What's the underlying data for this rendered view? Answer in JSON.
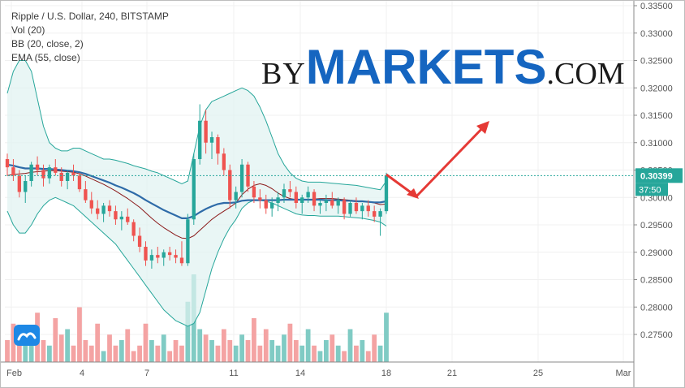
{
  "legend": {
    "symbol": "Ripple / U.S. Dollar, 240, BITSTAMP",
    "vol": "Vol (20)",
    "bb": "BB (20, close, 2)",
    "ema": "EMA (55, close)"
  },
  "brand": {
    "by": "BY",
    "markets": "MARKETS",
    "com": ".COM"
  },
  "colors": {
    "up": "#26a69a",
    "down": "#ef5350",
    "ema": "#2e6ba8",
    "bb_basis": "#8b1a1a",
    "bb_band": "#26a69a",
    "bb_fill": "#e0f2f1",
    "price_tag": "#26a69a",
    "arrow": "#e53935",
    "vol_up": "#80cbc4",
    "vol_down": "#f4a3a3"
  },
  "chart_data": {
    "type": "candlestick",
    "y_ticks": [
      "0.33500",
      "0.33000",
      "0.32500",
      "0.32000",
      "0.31500",
      "0.31000",
      "0.30500",
      "0.30000",
      "0.29500",
      "0.29000",
      "0.28500",
      "0.28000",
      "0.27500"
    ],
    "x_ticks": [
      "Feb",
      "4",
      "7",
      "11",
      "14",
      "18",
      "21",
      "25",
      "Mar"
    ],
    "ylim": [
      0.2705,
      0.3355
    ],
    "last_price": "0.30399",
    "countdown": "37:50",
    "candles": [
      [
        0.307,
        0.308,
        0.304,
        0.3055
      ],
      [
        0.3055,
        0.307,
        0.303,
        0.304
      ],
      [
        0.304,
        0.305,
        0.3,
        0.301
      ],
      [
        0.301,
        0.304,
        0.299,
        0.303
      ],
      [
        0.303,
        0.3065,
        0.302,
        0.306
      ],
      [
        0.306,
        0.3075,
        0.304,
        0.305
      ],
      [
        0.305,
        0.306,
        0.302,
        0.3035
      ],
      [
        0.3035,
        0.306,
        0.3025,
        0.3055
      ],
      [
        0.3055,
        0.307,
        0.304,
        0.3045
      ],
      [
        0.3045,
        0.3055,
        0.302,
        0.303
      ],
      [
        0.303,
        0.305,
        0.3015,
        0.3045
      ],
      [
        0.3045,
        0.306,
        0.303,
        0.304
      ],
      [
        0.304,
        0.3045,
        0.301,
        0.3015
      ],
      [
        0.3015,
        0.303,
        0.299,
        0.2995
      ],
      [
        0.2995,
        0.301,
        0.297,
        0.298
      ],
      [
        0.298,
        0.2995,
        0.296,
        0.297
      ],
      [
        0.297,
        0.299,
        0.2955,
        0.2985
      ],
      [
        0.2985,
        0.2995,
        0.2965,
        0.2975
      ],
      [
        0.2975,
        0.2985,
        0.295,
        0.296
      ],
      [
        0.296,
        0.2975,
        0.294,
        0.2965
      ],
      [
        0.2965,
        0.298,
        0.295,
        0.2955
      ],
      [
        0.2955,
        0.296,
        0.292,
        0.293
      ],
      [
        0.293,
        0.2945,
        0.29,
        0.291
      ],
      [
        0.291,
        0.292,
        0.2875,
        0.2885
      ],
      [
        0.2885,
        0.2905,
        0.287,
        0.2895
      ],
      [
        0.2895,
        0.291,
        0.288,
        0.289
      ],
      [
        0.289,
        0.2905,
        0.2875,
        0.29
      ],
      [
        0.29,
        0.291,
        0.2885,
        0.2895
      ],
      [
        0.2895,
        0.2905,
        0.288,
        0.289
      ],
      [
        0.289,
        0.292,
        0.2875,
        0.288
      ],
      [
        0.288,
        0.297,
        0.2875,
        0.296
      ],
      [
        0.296,
        0.308,
        0.295,
        0.307
      ],
      [
        0.307,
        0.317,
        0.306,
        0.314
      ],
      [
        0.314,
        0.316,
        0.308,
        0.31
      ],
      [
        0.31,
        0.312,
        0.307,
        0.311
      ],
      [
        0.311,
        0.3115,
        0.306,
        0.308
      ],
      [
        0.308,
        0.309,
        0.304,
        0.305
      ],
      [
        0.305,
        0.306,
        0.298,
        0.2995
      ],
      [
        0.2995,
        0.302,
        0.298,
        0.301
      ],
      [
        0.301,
        0.307,
        0.3,
        0.306
      ],
      [
        0.306,
        0.3065,
        0.301,
        0.302
      ],
      [
        0.302,
        0.303,
        0.299,
        0.3
      ],
      [
        0.3,
        0.3015,
        0.298,
        0.2995
      ],
      [
        0.2995,
        0.3005,
        0.297,
        0.298
      ],
      [
        0.298,
        0.3,
        0.2965,
        0.299
      ],
      [
        0.299,
        0.301,
        0.2975,
        0.3
      ],
      [
        0.3,
        0.3025,
        0.299,
        0.3015
      ],
      [
        0.3015,
        0.303,
        0.3,
        0.301
      ],
      [
        0.301,
        0.302,
        0.298,
        0.299
      ],
      [
        0.299,
        0.3005,
        0.297,
        0.3
      ],
      [
        0.3,
        0.302,
        0.299,
        0.301
      ],
      [
        0.301,
        0.3015,
        0.2975,
        0.2985
      ],
      [
        0.2985,
        0.2995,
        0.297,
        0.299
      ],
      [
        0.299,
        0.3005,
        0.2975,
        0.2995
      ],
      [
        0.2995,
        0.301,
        0.298,
        0.2985
      ],
      [
        0.2985,
        0.3,
        0.297,
        0.2995
      ],
      [
        0.2995,
        0.3,
        0.296,
        0.297
      ],
      [
        0.297,
        0.2995,
        0.2965,
        0.299
      ],
      [
        0.299,
        0.3,
        0.297,
        0.2975
      ],
      [
        0.2975,
        0.299,
        0.296,
        0.2985
      ],
      [
        0.2985,
        0.2995,
        0.2965,
        0.2975
      ],
      [
        0.2975,
        0.2985,
        0.2955,
        0.2965
      ],
      [
        0.2965,
        0.298,
        0.293,
        0.2975
      ],
      [
        0.2975,
        0.3045,
        0.297,
        0.304
      ]
    ],
    "ema": [
      0.306,
      0.3058,
      0.3055,
      0.3053,
      0.3053,
      0.3053,
      0.3052,
      0.3052,
      0.3051,
      0.305,
      0.3049,
      0.3048,
      0.3046,
      0.3043,
      0.3039,
      0.3035,
      0.3031,
      0.3027,
      0.3022,
      0.3018,
      0.3013,
      0.3008,
      0.3002,
      0.2995,
      0.2989,
      0.2983,
      0.2977,
      0.2972,
      0.2967,
      0.2962,
      0.2962,
      0.2966,
      0.2973,
      0.2979,
      0.2984,
      0.2988,
      0.299,
      0.299,
      0.2991,
      0.2994,
      0.2995,
      0.2995,
      0.2995,
      0.2995,
      0.2995,
      0.2995,
      0.2996,
      0.2996,
      0.2996,
      0.2996,
      0.2996,
      0.2996,
      0.2996,
      0.2995,
      0.2995,
      0.2995,
      0.2994,
      0.2994,
      0.2993,
      0.2993,
      0.2992,
      0.2991,
      0.2991,
      0.2993
    ],
    "bb_basis": [
      0.304,
      0.3042,
      0.3043,
      0.3044,
      0.3046,
      0.3047,
      0.3048,
      0.3049,
      0.3049,
      0.3048,
      0.3047,
      0.3046,
      0.3043,
      0.3039,
      0.3034,
      0.3029,
      0.3024,
      0.3018,
      0.3012,
      0.3005,
      0.2998,
      0.299,
      0.2982,
      0.2972,
      0.2962,
      0.2953,
      0.2945,
      0.2938,
      0.2931,
      0.2926,
      0.2925,
      0.293,
      0.294,
      0.295,
      0.296,
      0.2968,
      0.2975,
      0.2982,
      0.299,
      0.3005,
      0.3015,
      0.3022,
      0.3025,
      0.3022,
      0.3016,
      0.3008,
      0.3002,
      0.2998,
      0.2996,
      0.2995,
      0.2996,
      0.2997,
      0.2998,
      0.2998,
      0.2998,
      0.2997,
      0.2996,
      0.2995,
      0.2994,
      0.2993,
      0.2992,
      0.299,
      0.2987,
      0.2988
    ],
    "bb_upper": [
      0.319,
      0.323,
      0.325,
      0.325,
      0.323,
      0.318,
      0.313,
      0.31,
      0.309,
      0.3085,
      0.3085,
      0.309,
      0.309,
      0.3085,
      0.308,
      0.3075,
      0.307,
      0.307,
      0.3068,
      0.3065,
      0.3062,
      0.3058,
      0.3055,
      0.3052,
      0.3048,
      0.3045,
      0.304,
      0.3035,
      0.303,
      0.3025,
      0.303,
      0.308,
      0.313,
      0.316,
      0.3175,
      0.318,
      0.3185,
      0.319,
      0.3195,
      0.32,
      0.3195,
      0.3185,
      0.3165,
      0.314,
      0.311,
      0.308,
      0.306,
      0.3045,
      0.3035,
      0.303,
      0.3028,
      0.3028,
      0.3028,
      0.3027,
      0.3026,
      0.3025,
      0.3024,
      0.3023,
      0.3022,
      0.302,
      0.3018,
      0.3016,
      0.3014,
      0.303
    ],
    "bb_lower": [
      0.2975,
      0.295,
      0.2935,
      0.2935,
      0.295,
      0.297,
      0.2985,
      0.2995,
      0.3,
      0.2995,
      0.299,
      0.2985,
      0.2975,
      0.2965,
      0.2955,
      0.2945,
      0.2935,
      0.2925,
      0.2915,
      0.29,
      0.2885,
      0.287,
      0.2855,
      0.284,
      0.2825,
      0.281,
      0.2795,
      0.2785,
      0.2775,
      0.277,
      0.2765,
      0.277,
      0.279,
      0.283,
      0.287,
      0.29,
      0.2925,
      0.2945,
      0.296,
      0.298,
      0.299,
      0.2995,
      0.2995,
      0.2993,
      0.299,
      0.2985,
      0.298,
      0.2975,
      0.297,
      0.2968,
      0.2967,
      0.2967,
      0.2966,
      0.2966,
      0.2966,
      0.2966,
      0.2965,
      0.2964,
      0.2963,
      0.2962,
      0.296,
      0.2958,
      0.2955,
      0.2948
    ],
    "volume": [
      4,
      7,
      6,
      3,
      5,
      9,
      4,
      3,
      8,
      5,
      6,
      3,
      10,
      4,
      3,
      7,
      2,
      5,
      3,
      4,
      6,
      2,
      3,
      7,
      4,
      3,
      5,
      2,
      4,
      3,
      11,
      16,
      6,
      5,
      4,
      3,
      6,
      4,
      3,
      5,
      4,
      8,
      3,
      6,
      4,
      3,
      5,
      7,
      4,
      3,
      6,
      3,
      2,
      4,
      5,
      3,
      2,
      6,
      3,
      4,
      2,
      5,
      3,
      9
    ]
  }
}
